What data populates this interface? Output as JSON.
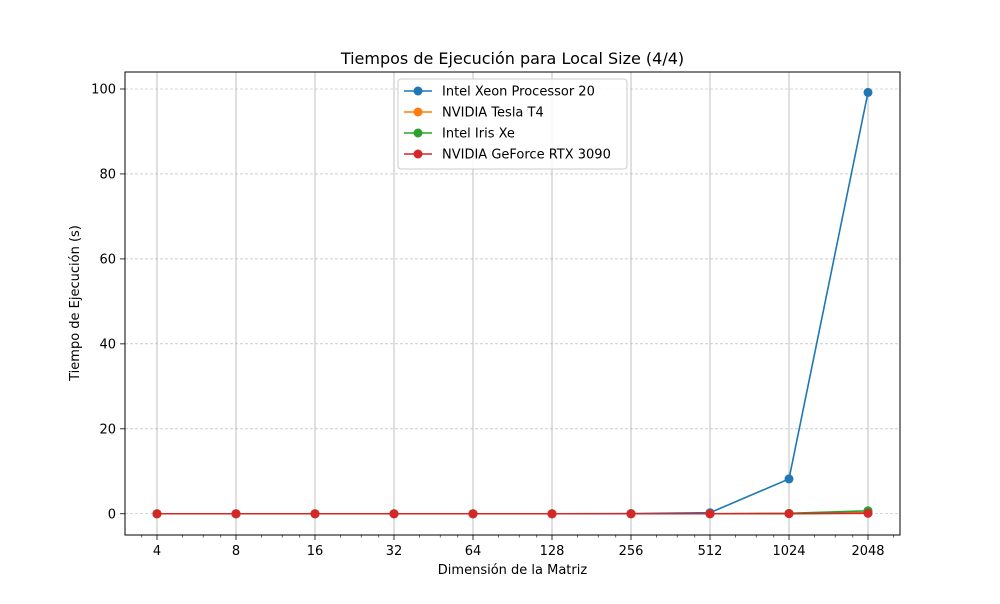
{
  "chart_data": {
    "type": "line",
    "title": "Tiempos de Ejecución para Local Size (4/4)",
    "xlabel": "Dimensión de la Matriz",
    "ylabel": "Tiempo de Ejecución (s)",
    "x_scale": "log2",
    "x": [
      4,
      8,
      16,
      32,
      64,
      128,
      256,
      512,
      1024,
      2048
    ],
    "x_tick_labels": [
      "4",
      "8",
      "16",
      "32",
      "64",
      "128",
      "256",
      "512",
      "1024",
      "2048"
    ],
    "y_ticks": [
      0,
      20,
      40,
      60,
      80,
      100
    ],
    "ylim": [
      -5,
      104
    ],
    "grid": true,
    "legend_position": "top-center",
    "series": [
      {
        "name": "Intel Xeon Processor 20",
        "color": "#1f77b4",
        "values": [
          0.0,
          0.0,
          0.0,
          0.0,
          0.0,
          0.0,
          0.05,
          0.25,
          8.2,
          99.2
        ]
      },
      {
        "name": "NVIDIA Tesla T4",
        "color": "#ff7f0e",
        "values": [
          0.0,
          0.0,
          0.0,
          0.0,
          0.0,
          0.0,
          0.0,
          0.0,
          0.05,
          0.25
        ]
      },
      {
        "name": "Intel Iris Xe",
        "color": "#2ca02c",
        "values": [
          0.0,
          0.0,
          0.0,
          0.0,
          0.0,
          0.0,
          0.0,
          0.0,
          0.1,
          0.7
        ]
      },
      {
        "name": "NVIDIA GeForce RTX 3090",
        "color": "#d62728",
        "values": [
          0.0,
          0.0,
          0.0,
          0.0,
          0.0,
          0.0,
          0.0,
          0.0,
          0.02,
          0.1
        ]
      }
    ]
  }
}
